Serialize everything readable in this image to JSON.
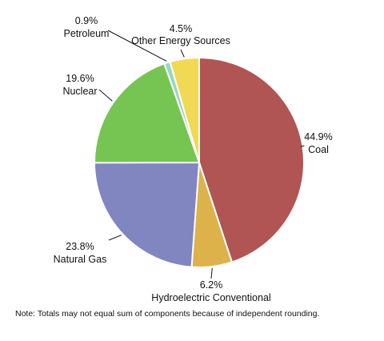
{
  "chart_data": {
    "type": "pie",
    "title": "",
    "slices": [
      {
        "label": "Coal",
        "value_label": "44.9%",
        "value": 44.9,
        "color": "#b05454"
      },
      {
        "label": "Hydroelectric Conventional",
        "value_label": "6.2%",
        "value": 6.2,
        "color": "#ddb24a"
      },
      {
        "label": "Natural Gas",
        "value_label": "23.8%",
        "value": 23.8,
        "color": "#8185c0"
      },
      {
        "label": "Nuclear",
        "value_label": "19.6%",
        "value": 19.6,
        "color": "#76c552"
      },
      {
        "label": "Petroleum",
        "value_label": "0.9%",
        "value": 0.9,
        "color": "#97d6c2"
      },
      {
        "label": "Other Energy Sources",
        "value_label": "4.5%",
        "value": 4.5,
        "color": "#f1d955"
      }
    ],
    "start_angle": "12 o'clock",
    "direction": "clockwise"
  },
  "note": "Note: Totals may not equal sum of components because of independent rounding."
}
